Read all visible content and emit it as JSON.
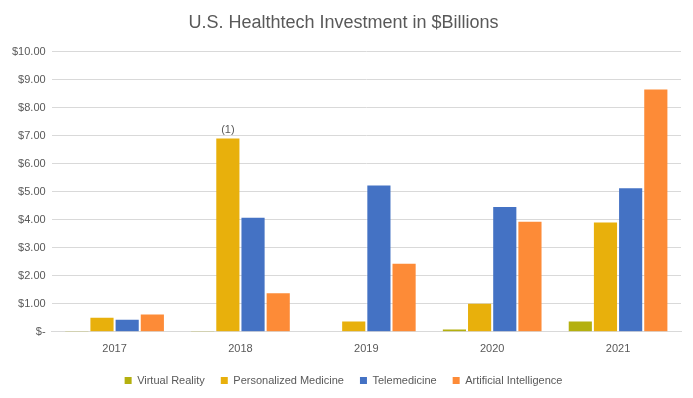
{
  "chart_data": {
    "type": "bar",
    "title": "U.S. Healthtech Investment in $Billions",
    "categories": [
      "2017",
      "2018",
      "2019",
      "2020",
      "2021"
    ],
    "series": [
      {
        "name": "Virtual Reality",
        "color": "#b4b00f",
        "values": [
          0.03,
          0.03,
          0,
          0.08,
          0.37
        ]
      },
      {
        "name": "Personalized Medicine",
        "color": "#e8b00c",
        "values": [
          0.5,
          6.9,
          0.37,
          1.0,
          3.9
        ]
      },
      {
        "name": "Telemedicine",
        "color": "#4472c4",
        "values": [
          0.43,
          4.07,
          5.22,
          4.45,
          5.12
        ]
      },
      {
        "name": "Artificial Intelligence",
        "color": "#fd8b37",
        "values": [
          0.62,
          1.38,
          2.43,
          3.93,
          8.65
        ]
      }
    ],
    "ylim": [
      0,
      10
    ],
    "yticks": [
      {
        "value": 0,
        "label": "$-"
      },
      {
        "value": 1,
        "label": "$1.00"
      },
      {
        "value": 2,
        "label": "$2.00"
      },
      {
        "value": 3,
        "label": "$3.00"
      },
      {
        "value": 4,
        "label": "$4.00"
      },
      {
        "value": 5,
        "label": "$5.00"
      },
      {
        "value": 6,
        "label": "$6.00"
      },
      {
        "value": 7,
        "label": "$7.00"
      },
      {
        "value": 8,
        "label": "$8.00"
      },
      {
        "value": 9,
        "label": "$9.00"
      },
      {
        "value": 10,
        "label": "$10.00"
      }
    ],
    "grid": true,
    "legend": "bottom",
    "annotations": [
      {
        "text": "(1)",
        "x": "2018",
        "series": "Personalized Medicine"
      }
    ]
  }
}
